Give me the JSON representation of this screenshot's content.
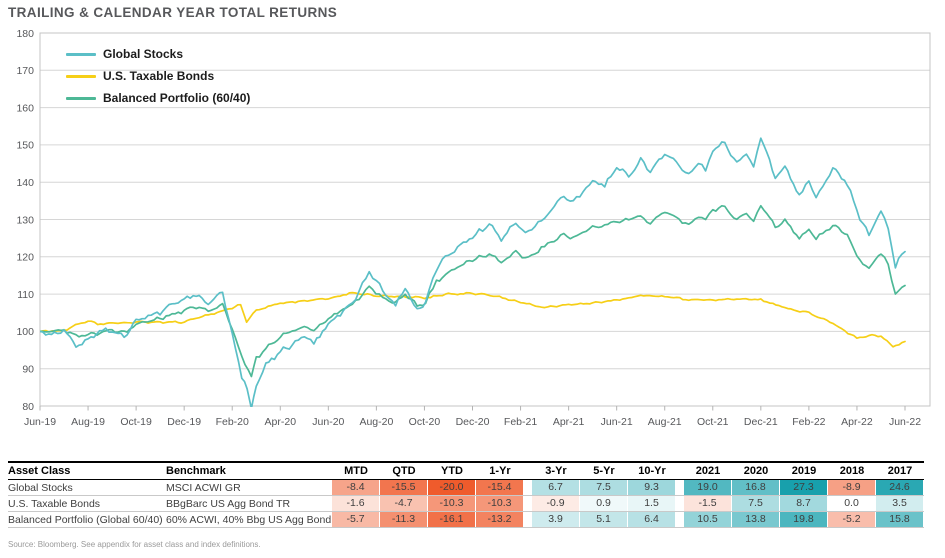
{
  "title": "TRAILING & CALENDAR YEAR TOTAL RETURNS",
  "source_note": "Source: Bloomberg. See appendix for asset class and index definitions.",
  "chart_data": {
    "type": "line",
    "title": "TRAILING & CALENDAR YEAR TOTAL RETURNS",
    "xlabel": "",
    "ylabel": "",
    "ylim": [
      80,
      180
    ],
    "y_ticks": [
      80,
      90,
      100,
      110,
      120,
      130,
      140,
      150,
      160,
      170,
      180
    ],
    "x_tick_labels": [
      "Jun-19",
      "Aug-19",
      "Oct-19",
      "Dec-19",
      "Feb-20",
      "Apr-20",
      "Jun-20",
      "Aug-20",
      "Oct-20",
      "Dec-20",
      "Feb-21",
      "Apr-21",
      "Jun-21",
      "Aug-21",
      "Oct-21",
      "Dec-21",
      "Feb-22",
      "Apr-22",
      "Jun-22"
    ],
    "x_unit": "months since Jun-19, ticks every 2 months",
    "grid": "horizontal",
    "legend_position": "top-left-inside",
    "series": [
      {
        "name": "U.S. Taxable Bonds",
        "color": "#f6cf17",
        "jitter": 0.16,
        "points": [
          [
            0,
            100
          ],
          [
            1,
            100.2
          ],
          [
            1.6,
            102.0
          ],
          [
            2,
            102.8
          ],
          [
            2.4,
            102.0
          ],
          [
            3,
            102.2
          ],
          [
            4,
            102.5
          ],
          [
            5,
            102.4
          ],
          [
            6,
            102.5
          ],
          [
            7,
            104.4
          ],
          [
            8,
            106.3
          ],
          [
            8.35,
            107.2
          ],
          [
            8.6,
            102.6
          ],
          [
            9,
            105.7
          ],
          [
            10,
            107.6
          ],
          [
            11,
            108.1
          ],
          [
            12,
            108.8
          ],
          [
            13,
            110.4
          ],
          [
            14,
            109.5
          ],
          [
            15,
            109.4
          ],
          [
            16,
            108.9
          ],
          [
            17,
            110.0
          ],
          [
            18,
            110.2
          ],
          [
            19,
            109.4
          ],
          [
            20,
            107.8
          ],
          [
            21,
            106.4
          ],
          [
            22,
            107.3
          ],
          [
            23,
            107.6
          ],
          [
            24,
            108.4
          ],
          [
            25,
            109.6
          ],
          [
            26,
            109.4
          ],
          [
            27,
            108.5
          ],
          [
            28,
            108.4
          ],
          [
            29,
            108.7
          ],
          [
            30,
            108.5
          ],
          [
            31,
            106.3
          ],
          [
            32,
            105.0
          ],
          [
            33,
            102.1
          ],
          [
            34,
            98.2
          ],
          [
            34.5,
            98.9
          ],
          [
            35,
            98.8
          ],
          [
            35.5,
            95.9
          ],
          [
            36,
            97.3
          ]
        ]
      },
      {
        "name": "Balanced Portfolio (60/40)",
        "color": "#4db896",
        "jitter": 0.38,
        "points": [
          [
            0,
            100
          ],
          [
            1,
            100.3
          ],
          [
            1.5,
            98.7
          ],
          [
            2,
            99.0
          ],
          [
            3,
            100.3
          ],
          [
            3.5,
            99.5
          ],
          [
            4,
            102.0
          ],
          [
            5,
            103.4
          ],
          [
            6,
            105.6
          ],
          [
            6.5,
            106.5
          ],
          [
            7,
            105.4
          ],
          [
            7.6,
            107.3
          ],
          [
            8,
            100.6
          ],
          [
            8.4,
            93.5
          ],
          [
            8.8,
            87.6
          ],
          [
            9,
            92.8
          ],
          [
            9.4,
            95.5
          ],
          [
            10,
            98.7
          ],
          [
            11,
            101.4
          ],
          [
            11.4,
            100.0
          ],
          [
            12,
            103.5
          ],
          [
            13,
            107.3
          ],
          [
            13.7,
            111.8
          ],
          [
            14.4,
            108.5
          ],
          [
            14.8,
            107.5
          ],
          [
            15.2,
            110.0
          ],
          [
            15.7,
            106.8
          ],
          [
            16.05,
            107.8
          ],
          [
            16.5,
            113.5
          ],
          [
            17,
            115.8
          ],
          [
            18,
            119.3
          ],
          [
            18.7,
            120.8
          ],
          [
            19.2,
            118.5
          ],
          [
            19.8,
            121.3
          ],
          [
            20.2,
            119.5
          ],
          [
            21,
            122.8
          ],
          [
            21.8,
            126.0
          ],
          [
            22.2,
            125.0
          ],
          [
            23,
            128.0
          ],
          [
            24,
            129.3
          ],
          [
            25,
            130.8
          ],
          [
            25.4,
            129.0
          ],
          [
            26,
            132.0
          ],
          [
            26.6,
            130.0
          ],
          [
            27,
            128.6
          ],
          [
            27.4,
            131.0
          ],
          [
            27.7,
            129.5
          ],
          [
            28,
            132.5
          ],
          [
            28.5,
            133.3
          ],
          [
            29,
            130.0
          ],
          [
            29.4,
            132.0
          ],
          [
            29.7,
            129.5
          ],
          [
            30,
            133.7
          ],
          [
            30.6,
            128.0
          ],
          [
            31,
            129.8
          ],
          [
            31.6,
            125.2
          ],
          [
            32,
            127.3
          ],
          [
            32.3,
            124.8
          ],
          [
            33,
            128.3
          ],
          [
            33.6,
            125.8
          ],
          [
            34,
            120.3
          ],
          [
            34.5,
            116.8
          ],
          [
            34.8,
            119.8
          ],
          [
            35,
            120.8
          ],
          [
            35.3,
            118.0
          ],
          [
            35.6,
            110.0
          ],
          [
            36,
            112.3
          ]
        ]
      },
      {
        "name": "Global Stocks",
        "color": "#5bbfc7",
        "jitter": 0.5,
        "points": [
          [
            0,
            100
          ],
          [
            0.6,
            99.0
          ],
          [
            1,
            100.3
          ],
          [
            1.5,
            96.3
          ],
          [
            2,
            97.9
          ],
          [
            2.6,
            100.2
          ],
          [
            3,
            100.0
          ],
          [
            3.5,
            98.6
          ],
          [
            4,
            102.7
          ],
          [
            5,
            105.2
          ],
          [
            6,
            108.8
          ],
          [
            6.5,
            110.0
          ],
          [
            7,
            107.6
          ],
          [
            7.6,
            110.4
          ],
          [
            8,
            98.9
          ],
          [
            8.4,
            88.0
          ],
          [
            8.62,
            84.5
          ],
          [
            8.8,
            79.4
          ],
          [
            9,
            85.5
          ],
          [
            9.4,
            91.0
          ],
          [
            10,
            94.8
          ],
          [
            10.5,
            96.5
          ],
          [
            11,
            99.0
          ],
          [
            11.4,
            96.8
          ],
          [
            12,
            102.2
          ],
          [
            13,
            107.6
          ],
          [
            13.7,
            116.0
          ],
          [
            14,
            114.0
          ],
          [
            14.4,
            109.5
          ],
          [
            14.8,
            107.0
          ],
          [
            15.2,
            111.5
          ],
          [
            15.7,
            105.8
          ],
          [
            16.05,
            107.5
          ],
          [
            16.5,
            117.0
          ],
          [
            17,
            120.5
          ],
          [
            18,
            125.5
          ],
          [
            18.7,
            128.8
          ],
          [
            19.2,
            124.6
          ],
          [
            19.8,
            129.0
          ],
          [
            20.2,
            126.0
          ],
          [
            21,
            130.5
          ],
          [
            21.8,
            136.5
          ],
          [
            22.2,
            134.5
          ],
          [
            23,
            140.0
          ],
          [
            23.5,
            139.0
          ],
          [
            24,
            143.8
          ],
          [
            24.5,
            141.5
          ],
          [
            25,
            146.0
          ],
          [
            25.4,
            143.0
          ],
          [
            26,
            148.0
          ],
          [
            26.6,
            144.5
          ],
          [
            27,
            141.5
          ],
          [
            27.4,
            145.5
          ],
          [
            27.7,
            143.0
          ],
          [
            28,
            148.5
          ],
          [
            28.5,
            151.0
          ],
          [
            29,
            144.8
          ],
          [
            29.4,
            148.0
          ],
          [
            29.7,
            144.0
          ],
          [
            30,
            151.9
          ],
          [
            30.6,
            141.0
          ],
          [
            31,
            144.4
          ],
          [
            31.6,
            136.0
          ],
          [
            32,
            140.7
          ],
          [
            32.3,
            135.5
          ],
          [
            33,
            143.8
          ],
          [
            33.6,
            139.5
          ],
          [
            34,
            132.3
          ],
          [
            34.5,
            125.5
          ],
          [
            34.8,
            130.5
          ],
          [
            35,
            132.4
          ],
          [
            35.3,
            128.0
          ],
          [
            35.6,
            117.5
          ],
          [
            36,
            121.4
          ]
        ]
      }
    ],
    "legend_order": [
      "Global Stocks",
      "U.S. Taxable Bonds",
      "Balanced Portfolio (60/40)"
    ]
  },
  "table": {
    "columns": [
      "Asset Class",
      "Benchmark",
      "MTD",
      "QTD",
      "YTD",
      "1-Yr",
      "3-Yr",
      "5-Yr",
      "10-Yr",
      "2021",
      "2020",
      "2019",
      "2018",
      "2017"
    ],
    "rows": [
      {
        "asset_class": "Global Stocks",
        "benchmark": "MSCI ACWI GR",
        "values": [
          -8.4,
          -15.5,
          -20.0,
          -15.4,
          6.7,
          7.5,
          9.3,
          19.0,
          16.8,
          27.3,
          -8.9,
          24.6
        ]
      },
      {
        "asset_class": "U.S. Taxable Bonds",
        "benchmark": "BBgBarc US Agg Bond TR",
        "values": [
          -1.6,
          -4.7,
          -10.3,
          -10.3,
          -0.9,
          0.9,
          1.5,
          -1.5,
          7.5,
          8.7,
          0.0,
          3.5
        ]
      },
      {
        "asset_class": "Balanced Portfolio (Global 60/40)",
        "benchmark": "60% ACWI, 40% Bbg US Agg Bond",
        "values": [
          -5.7,
          -11.3,
          -16.1,
          -13.2,
          3.9,
          5.1,
          6.4,
          10.5,
          13.8,
          19.8,
          -5.2,
          15.8
        ]
      }
    ],
    "heat_colors": {
      "negative_max": "#ef5b2c",
      "positive_max": "#18a0ac",
      "neutral": "#ffffff"
    },
    "heat_scale": {
      "negative_anchor": -20.0,
      "positive_anchor": 27.3
    }
  }
}
